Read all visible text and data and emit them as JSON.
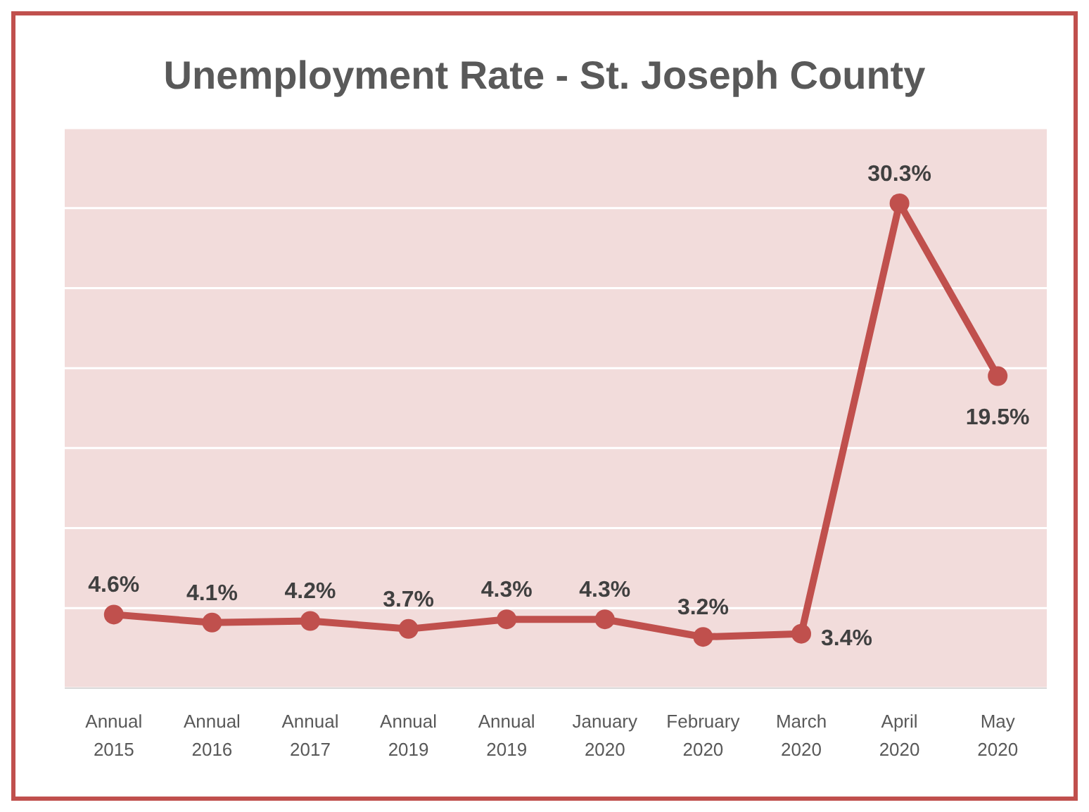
{
  "chart_data": {
    "type": "line",
    "title": "Unemployment Rate - St. Joseph County",
    "categories": [
      "Annual 2015",
      "Annual 2016",
      "Annual 2017",
      "Annual 2019",
      "Annual 2019",
      "January 2020",
      "February 2020",
      "March 2020",
      "April 2020",
      "May 2020"
    ],
    "series": [
      {
        "color": "#c0504d",
        "values": [
          4.6,
          4.1,
          4.2,
          3.7,
          4.3,
          4.3,
          3.2,
          3.4,
          30.3,
          19.5
        ],
        "value_labels": [
          "4.6%",
          "4.1%",
          "4.2%",
          "3.7%",
          "4.3%",
          "4.3%",
          "3.2%",
          "3.4%",
          "30.3%",
          "19.5%"
        ]
      }
    ],
    "ylim": [
      0,
      35
    ],
    "yticks": [
      {
        "value": 0,
        "label": null
      },
      {
        "value": 5,
        "label": null
      },
      {
        "value": 10,
        "label": null
      },
      {
        "value": 15,
        "label": null
      },
      {
        "value": 20,
        "label": null
      },
      {
        "value": 25,
        "label": null
      },
      {
        "value": 30,
        "label": null
      },
      {
        "value": 35,
        "label": null
      }
    ],
    "tick_labels": "x",
    "grid": "y",
    "marker": "circle",
    "line_style": "solid"
  }
}
